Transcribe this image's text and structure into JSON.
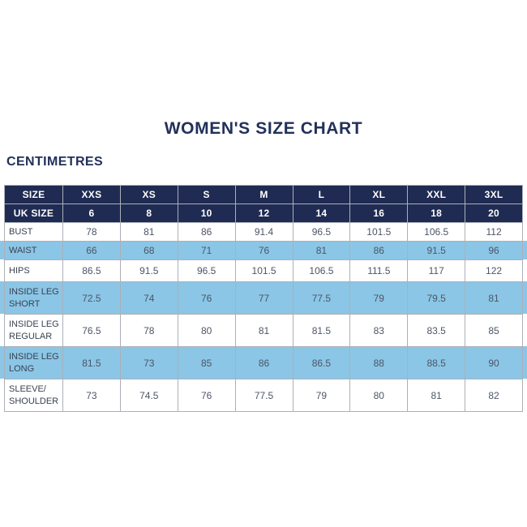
{
  "page": {
    "title": "WOMEN'S SIZE CHART",
    "unit_label": "CENTIMETRES"
  },
  "colors": {
    "navy_header": "#1f2b52",
    "light_blue_stripe": "#8bc6e6",
    "title_text": "#22315a",
    "data_text": "#4d5565",
    "border": "#abb0b7",
    "background": "#ffffff"
  },
  "table": {
    "header_rows": [
      {
        "label": "SIZE",
        "values": [
          "XXS",
          "XS",
          "S",
          "M",
          "L",
          "XL",
          "XXL",
          "3XL"
        ]
      },
      {
        "label": "UK SIZE",
        "values": [
          "6",
          "8",
          "10",
          "12",
          "14",
          "16",
          "18",
          "20"
        ]
      }
    ],
    "rows": [
      {
        "label": "BUST",
        "highlight": false,
        "values": [
          "78",
          "81",
          "86",
          "91.4",
          "96.5",
          "101.5",
          "106.5",
          "112"
        ]
      },
      {
        "label": "WAIST",
        "highlight": true,
        "values": [
          "66",
          "68",
          "71",
          "76",
          "81",
          "86",
          "91.5",
          "96"
        ]
      },
      {
        "label": "HIPS",
        "highlight": false,
        "values": [
          "86.5",
          "91.5",
          "96.5",
          "101.5",
          "106.5",
          "111.5",
          "117",
          "122"
        ]
      },
      {
        "label": "INSIDE LEG SHORT",
        "highlight": true,
        "values": [
          "72.5",
          "74",
          "76",
          "77",
          "77.5",
          "79",
          "79.5",
          "81"
        ]
      },
      {
        "label": "INSIDE LEG REGULAR",
        "highlight": false,
        "values": [
          "76.5",
          "78",
          "80",
          "81",
          "81.5",
          "83",
          "83.5",
          "85"
        ]
      },
      {
        "label": "INSIDE LEG LONG",
        "highlight": true,
        "values": [
          "81.5",
          "73",
          "85",
          "86",
          "86.5",
          "88",
          "88.5",
          "90"
        ]
      },
      {
        "label": "SLEEVE/ SHOULDER",
        "highlight": false,
        "values": [
          "73",
          "74.5",
          "76",
          "77.5",
          "79",
          "80",
          "81",
          "82"
        ]
      }
    ]
  }
}
